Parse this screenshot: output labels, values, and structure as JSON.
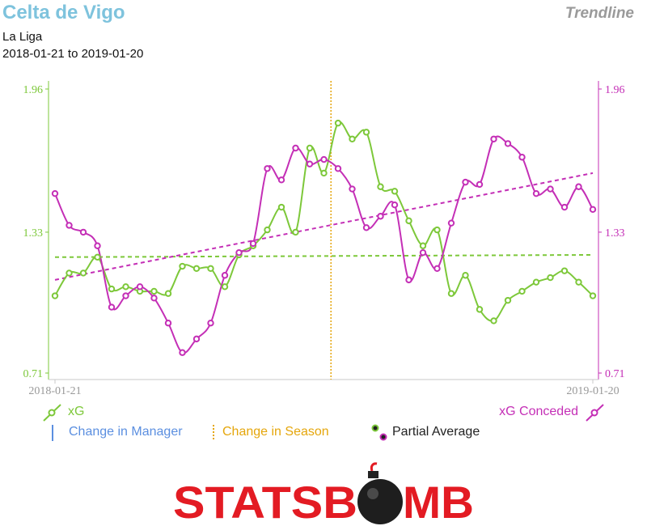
{
  "header": {
    "title": "Celta de Vigo",
    "league": "La Liga",
    "date_range": "2018-01-21 to 2019-01-20",
    "tag": "Trendline"
  },
  "colors": {
    "xg": "#7dc83a",
    "xga": "#c42fb6",
    "manager": "#5b8fe0",
    "season": "#e5a60b",
    "axis": "#c8c8c8",
    "brand": "#e31b23"
  },
  "legend": {
    "xg": "xG",
    "xga": "xG Conceded",
    "manager": "Change in Manager",
    "season": "Change in Season",
    "partial": "Partial Average"
  },
  "brand": {
    "logo_text_a": "STATSB",
    "logo_text_b": "MB"
  },
  "chart_data": {
    "type": "line",
    "x_start_label": "2018-01-21",
    "x_end_label": "2019-01-20",
    "ylim": [
      0.71,
      1.96
    ],
    "yticks_left": [
      "0.71",
      "1.33",
      "1.96"
    ],
    "yticks_right": [
      "0.71",
      "1.33",
      "1.96"
    ],
    "season_change_index": 19.5,
    "series": [
      {
        "name": "xG",
        "axis": "left",
        "values": [
          1.05,
          1.15,
          1.15,
          1.22,
          1.08,
          1.09,
          1.07,
          1.07,
          1.06,
          1.18,
          1.17,
          1.17,
          1.09,
          1.23,
          1.27,
          1.34,
          1.44,
          1.33,
          1.7,
          1.59,
          1.81,
          1.74,
          1.77,
          1.53,
          1.51,
          1.38,
          1.27,
          1.34,
          1.06,
          1.14,
          0.99,
          0.94,
          1.03,
          1.07,
          1.11,
          1.13,
          1.16,
          1.11,
          1.05
        ],
        "trend": [
          1.22,
          1.23
        ]
      },
      {
        "name": "xG Conceded",
        "axis": "right",
        "values": [
          1.5,
          1.36,
          1.33,
          1.27,
          1.0,
          1.05,
          1.09,
          1.04,
          0.93,
          0.8,
          0.86,
          0.93,
          1.14,
          1.24,
          1.28,
          1.61,
          1.56,
          1.7,
          1.63,
          1.65,
          1.61,
          1.52,
          1.35,
          1.4,
          1.45,
          1.12,
          1.24,
          1.17,
          1.37,
          1.55,
          1.54,
          1.74,
          1.72,
          1.66,
          1.5,
          1.52,
          1.44,
          1.53,
          1.43
        ],
        "trend": [
          1.12,
          1.59
        ]
      }
    ]
  }
}
